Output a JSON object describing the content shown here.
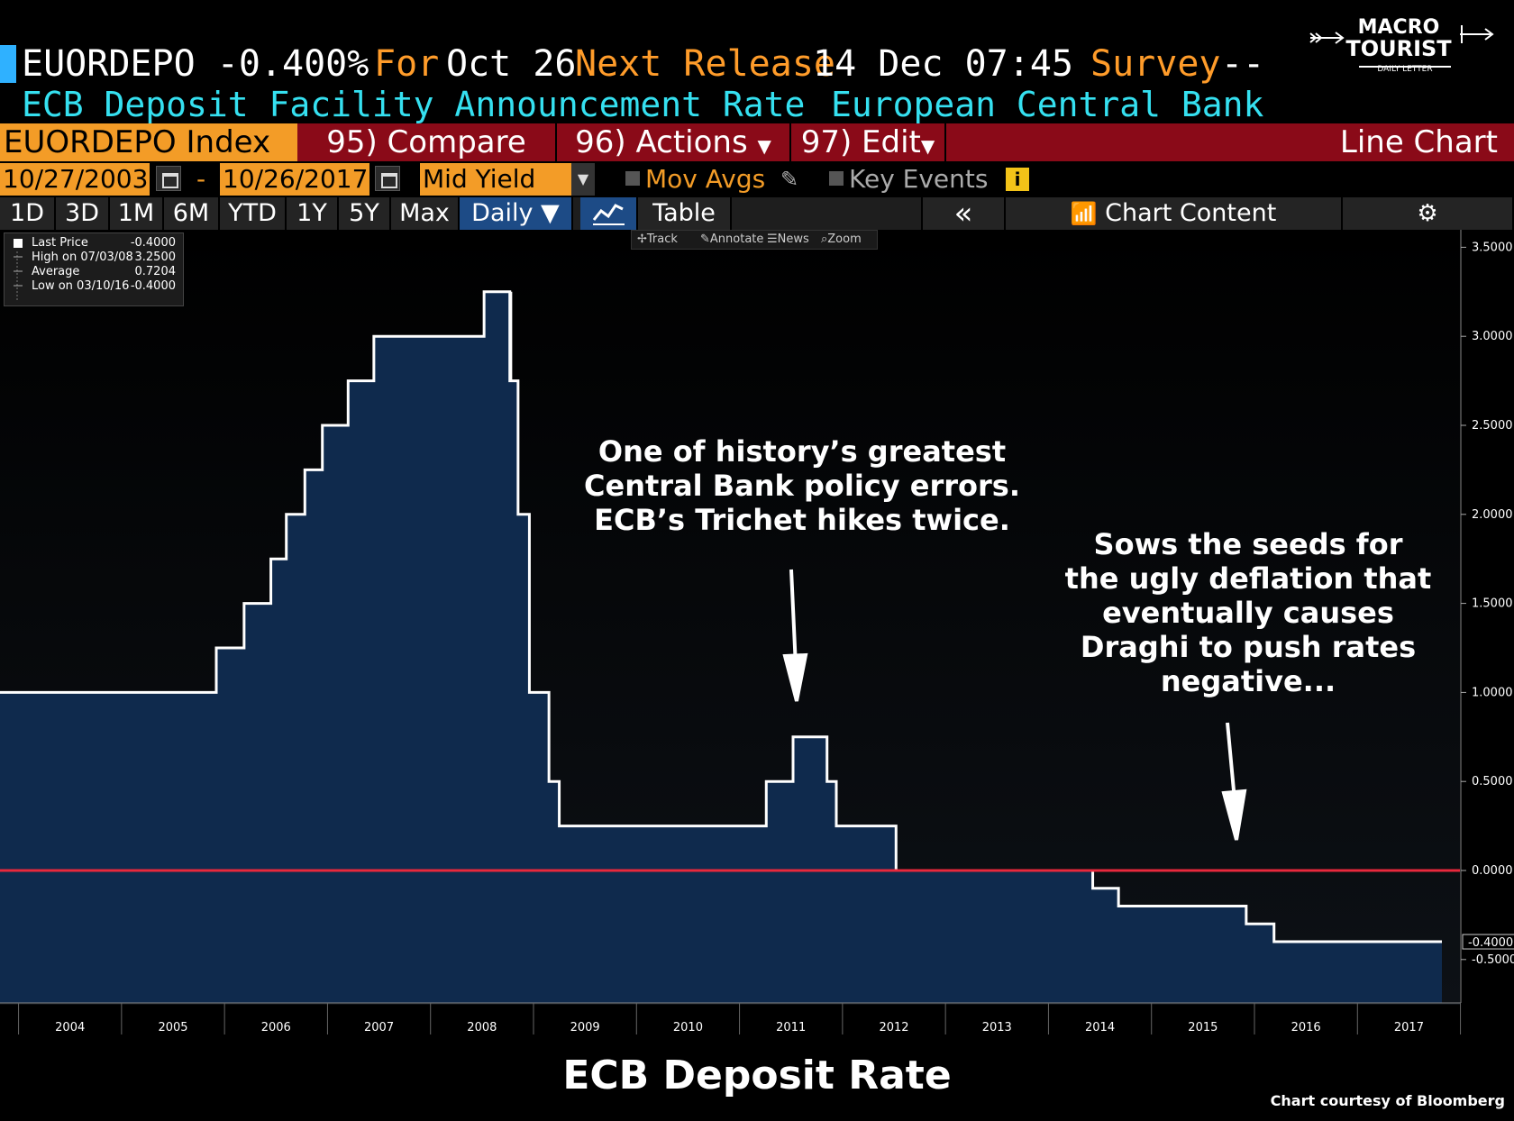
{
  "header": {
    "ticker_value": "EUORDEPO -0.400%",
    "for_label": "For",
    "for_date": "Oct 26",
    "next_release_label": "Next Release",
    "next_release_value": "14 Dec 07:45",
    "survey_label": "Survey",
    "survey_value": "--",
    "description": "ECB Deposit Facility Announcement Rate",
    "source": "European Central Bank"
  },
  "toolbar": {
    "ticker": "EUORDEPO Index",
    "compare": "95) Compare",
    "actions": "96) Actions",
    "edit": "97) Edit",
    "chart_type": "Line Chart"
  },
  "range": {
    "start": "10/27/2003",
    "dash": "-",
    "end": "10/26/2017",
    "field": "Mid Yield",
    "mov_avgs": "Mov Avgs",
    "key_events": "Key Events"
  },
  "periods": {
    "items": [
      "1D",
      "3D",
      "1M",
      "6M",
      "YTD",
      "1Y",
      "5Y",
      "Max"
    ],
    "frequency": "Daily ▼",
    "table": "Table",
    "collapse": "«",
    "chart_content": "Chart Content"
  },
  "legend": {
    "last_label": "Last Price",
    "last_value": "-0.4000",
    "high_label": "High on 07/03/08",
    "high_value": "3.2500",
    "avg_label": "Average",
    "avg_value": "0.7204",
    "low_label": "Low on 03/10/16",
    "low_value": "-0.4000"
  },
  "chart_tools": {
    "track": "Track",
    "annotate": "Annotate",
    "news": "News",
    "zoom": "Zoom"
  },
  "annotations": {
    "first": [
      "One of history’s greatest",
      "Central Bank policy errors.",
      "ECB’s Trichet hikes twice."
    ],
    "second": [
      "Sows the seeds for",
      "the ugly deflation that",
      "eventually causes",
      "Draghi to push rates",
      "negative..."
    ]
  },
  "footer": {
    "title": "ECB Deposit Rate",
    "credit": "Chart courtesy of Bloomberg"
  },
  "logo": {
    "line1": "MACRO",
    "line2": "TOURIST",
    "line3": "DAILY LETTER"
  },
  "colors": {
    "accent_orange": "#f39c27",
    "cyan": "#35e0f0",
    "toolbar_red": "#8a0a18",
    "fill": "#0f2a4d",
    "zero_line": "#e8283c"
  },
  "chart_data": {
    "type": "area",
    "title": "ECB Deposit Rate",
    "xlabel": "",
    "ylabel": "",
    "x_range": [
      2003.82,
      2017.82
    ],
    "ylim": [
      -0.75,
      3.6
    ],
    "y_ticks": [
      "3.5000",
      "3.0000",
      "2.5000",
      "2.0000",
      "1.5000",
      "1.0000",
      "0.5000",
      "0.0000",
      "-0.5000"
    ],
    "y_tick_values": [
      3.5,
      3.0,
      2.5,
      2.0,
      1.5,
      1.0,
      0.5,
      0.0,
      -0.5
    ],
    "x_ticks": [
      "2004",
      "2005",
      "2006",
      "2007",
      "2008",
      "2009",
      "2010",
      "2011",
      "2012",
      "2013",
      "2014",
      "2015",
      "2016",
      "2017"
    ],
    "last_value_label": "-0.4000",
    "reference_line": 0.0,
    "grid": false,
    "series": [
      {
        "steps": [
          [
            2003.82,
            1.0
          ],
          [
            2005.92,
            1.25
          ],
          [
            2006.19,
            1.5
          ],
          [
            2006.45,
            1.75
          ],
          [
            2006.6,
            2.0
          ],
          [
            2006.78,
            2.25
          ],
          [
            2006.95,
            2.5
          ],
          [
            2007.2,
            2.75
          ],
          [
            2007.45,
            3.0
          ],
          [
            2008.52,
            3.25
          ],
          [
            2008.77,
            2.75
          ],
          [
            2008.85,
            2.0
          ],
          [
            2008.96,
            1.0
          ],
          [
            2009.15,
            0.5
          ],
          [
            2009.25,
            0.25
          ],
          [
            2011.26,
            0.5
          ],
          [
            2011.52,
            0.75
          ],
          [
            2011.85,
            0.5
          ],
          [
            2011.94,
            0.25
          ],
          [
            2012.52,
            0.0
          ],
          [
            2014.43,
            -0.1
          ],
          [
            2014.68,
            -0.2
          ],
          [
            2015.92,
            -0.3
          ],
          [
            2016.19,
            -0.4
          ]
        ],
        "end_x": 2017.82,
        "spike": {
          "x": 2008.78,
          "from": 3.25,
          "to": 2.75
        }
      }
    ]
  }
}
